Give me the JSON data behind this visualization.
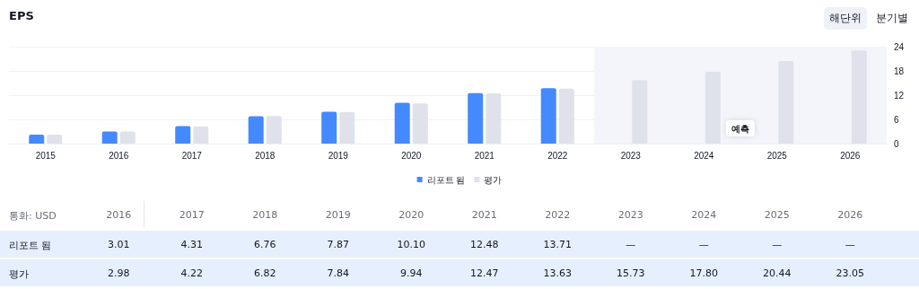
{
  "chart_data": {
    "type": "bar",
    "title": "EPS",
    "categories": [
      "2015",
      "2016",
      "2017",
      "2018",
      "2019",
      "2020",
      "2021",
      "2022",
      "2023",
      "2024",
      "2025",
      "2026"
    ],
    "series": [
      {
        "name": "리포트 됨",
        "color": "#4589ff",
        "values": [
          2.2,
          3.01,
          4.31,
          6.76,
          7.87,
          10.1,
          12.48,
          13.71,
          null,
          null,
          null,
          null
        ],
        "value_labels": [
          null,
          "3.01",
          "4.31",
          "6.76",
          "7.87",
          "10.10",
          "12.48",
          "13.71",
          "—",
          "—",
          "—",
          "—"
        ]
      },
      {
        "name": "평가",
        "color": "#dfe2ea",
        "values": [
          2.2,
          2.98,
          4.22,
          6.82,
          7.84,
          9.94,
          12.47,
          13.63,
          15.73,
          17.8,
          20.44,
          23.05
        ],
        "value_labels": [
          null,
          "2.98",
          "4.22",
          "6.82",
          "7.84",
          "9.94",
          "12.47",
          "13.63",
          "15.73",
          "17.80",
          "20.44",
          "23.05"
        ]
      }
    ],
    "ylim": [
      0,
      24
    ],
    "yticks": [
      0,
      6,
      12,
      18,
      24
    ],
    "grid": "y",
    "legend": "bottom",
    "bands": [
      {
        "axis": "x",
        "from": "2023",
        "to": "2026",
        "label": "예측",
        "color": "#f3f5fa"
      }
    ],
    "annotations": [
      "해단위",
      "분기별",
      "통화: USD"
    ]
  }
}
